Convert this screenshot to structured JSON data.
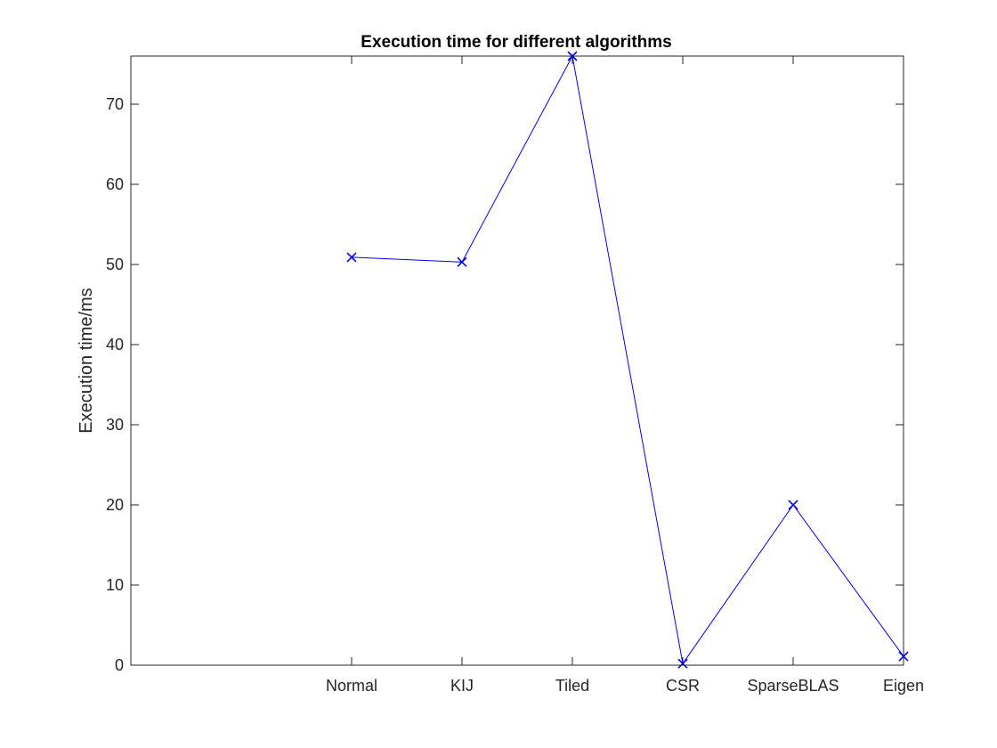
{
  "chart_data": {
    "type": "line",
    "title": "Execution time for different algorithms",
    "xlabel": "",
    "ylabel": "Execution time/ms",
    "categories": [
      "Normal",
      "KIJ",
      "Tiled",
      "CSR",
      "SparseBLAS",
      "Eigen"
    ],
    "x_positions": [
      2,
      3,
      4,
      5,
      6,
      7
    ],
    "xlim": [
      0,
      7
    ],
    "ylim": [
      0,
      76
    ],
    "yticks": [
      0,
      10,
      20,
      30,
      40,
      50,
      60,
      70
    ],
    "grid": false,
    "legend": "none",
    "series": [
      {
        "values": [
          50.9,
          50.3,
          76.0,
          0.2,
          20.0,
          1.1
        ],
        "color": "#0000ff",
        "marker": "x"
      }
    ]
  }
}
